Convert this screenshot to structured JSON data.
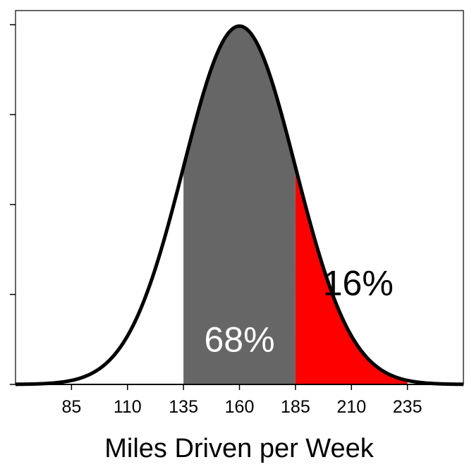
{
  "chart_data": {
    "type": "area",
    "title": "",
    "xlabel": "Miles Driven per Week",
    "ylabel": "",
    "distribution": {
      "kind": "normal",
      "mean": 160,
      "sd": 25
    },
    "xlim": [
      60,
      260
    ],
    "x_ticks": [
      85,
      110,
      135,
      160,
      185,
      210,
      235
    ],
    "y_tick_count": 5,
    "grid": false,
    "legend": "none",
    "shaded_regions": [
      {
        "from": 135,
        "to": 185,
        "color": "#666666",
        "label": "68%",
        "label_color": "#ffffff",
        "label_at": [
          160,
          0.002
        ]
      },
      {
        "from": 185,
        "to": 235,
        "color": "#ff0000",
        "label": "16%",
        "label_color": "#000000",
        "label_at": [
          213,
          0.0045
        ]
      }
    ],
    "curve_color": "#000000"
  }
}
